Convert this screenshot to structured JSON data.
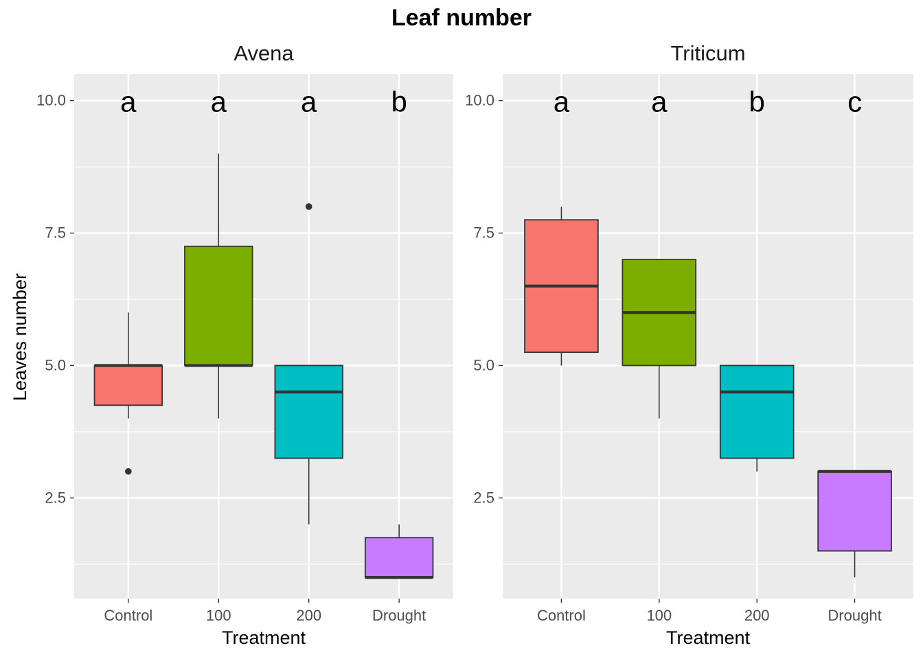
{
  "chart_data": {
    "type": "boxplot",
    "title": "Leaf number",
    "ylabel": "Leaves number",
    "ylim": [
      0.6,
      10.5
    ],
    "y_ticks": [
      2.5,
      5.0,
      7.5,
      10.0
    ],
    "y_tick_labels": [
      "2.5",
      "5.0",
      "7.5",
      "10.0"
    ],
    "categories": [
      "Control",
      "100",
      "200",
      "Drought"
    ],
    "colors": [
      "#F8766D",
      "#7CAE00",
      "#00BFC4",
      "#C77CFF"
    ],
    "grid": true,
    "facets": [
      {
        "name": "Avena",
        "xlabel": "Treatment",
        "letters": [
          "a",
          "a",
          "a",
          "b"
        ],
        "boxes": [
          {
            "category": "Control",
            "whisker_low": 4.0,
            "q1": 4.25,
            "median": 5.0,
            "q3": 5.0,
            "whisker_high": 6.0,
            "outliers": [
              3.0
            ]
          },
          {
            "category": "100",
            "whisker_low": 4.0,
            "q1": 5.0,
            "median": 5.0,
            "q3": 7.25,
            "whisker_high": 9.0,
            "outliers": []
          },
          {
            "category": "200",
            "whisker_low": 2.0,
            "q1": 3.25,
            "median": 4.5,
            "q3": 5.0,
            "whisker_high": 5.0,
            "outliers": [
              8.0
            ]
          },
          {
            "category": "Drought",
            "whisker_low": 1.0,
            "q1": 1.0,
            "median": 1.0,
            "q3": 1.75,
            "whisker_high": 2.0,
            "outliers": []
          }
        ]
      },
      {
        "name": "Triticum",
        "xlabel": "Treatment",
        "letters": [
          "a",
          "a",
          "b",
          "c"
        ],
        "boxes": [
          {
            "category": "Control",
            "whisker_low": 5.0,
            "q1": 5.25,
            "median": 6.5,
            "q3": 7.75,
            "whisker_high": 8.0,
            "outliers": []
          },
          {
            "category": "100",
            "whisker_low": 4.0,
            "q1": 5.0,
            "median": 6.0,
            "q3": 7.0,
            "whisker_high": 7.0,
            "outliers": []
          },
          {
            "category": "200",
            "whisker_low": 3.0,
            "q1": 3.25,
            "median": 4.5,
            "q3": 5.0,
            "whisker_high": 5.0,
            "outliers": []
          },
          {
            "category": "Drought",
            "whisker_low": 1.0,
            "q1": 1.5,
            "median": 3.0,
            "q3": 3.0,
            "whisker_high": 3.0,
            "outliers": []
          }
        ]
      }
    ]
  }
}
